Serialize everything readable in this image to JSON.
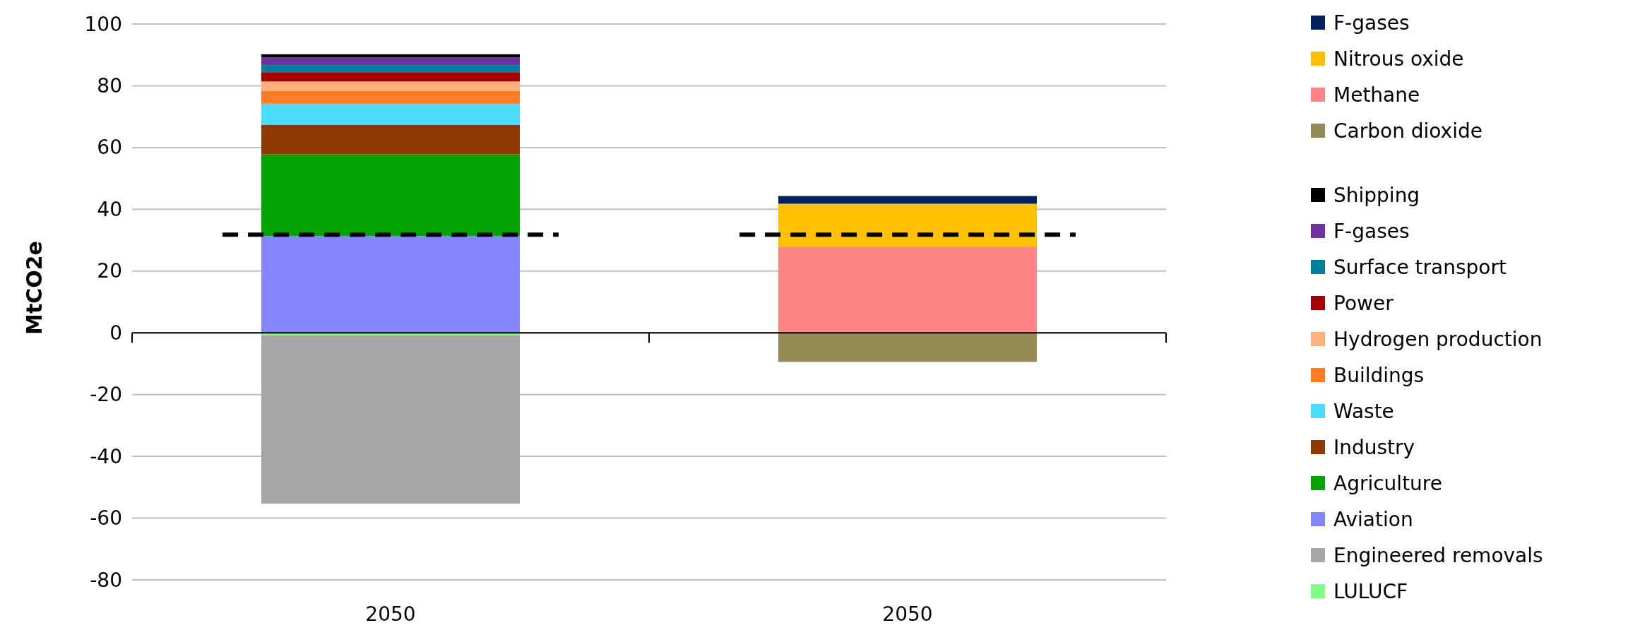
{
  "chart_data": {
    "type": "bar",
    "stacked": true,
    "ylabel": "MtCO2e",
    "categories": [
      "2050",
      "2050"
    ],
    "series": [
      {
        "name": "LULUCF",
        "color": "#7fff7f",
        "values": [
          -0.8,
          null
        ]
      },
      {
        "name": "Engineered removals",
        "color": "#a6a6a6",
        "values": [
          -54.5,
          null
        ]
      },
      {
        "name": "Aviation",
        "color": "#8585ff",
        "values": [
          31.3,
          null
        ]
      },
      {
        "name": "Agriculture",
        "color": "#03a303",
        "values": [
          26.5,
          null
        ]
      },
      {
        "name": "Industry",
        "color": "#8e3900",
        "values": [
          9.6,
          null
        ]
      },
      {
        "name": "Waste",
        "color": "#4cdcff",
        "values": [
          6.8,
          null
        ]
      },
      {
        "name": "Buildings",
        "color": "#ff7c24",
        "values": [
          4.2,
          null
        ]
      },
      {
        "name": "Hydrogen production",
        "color": "#ffb07c",
        "values": [
          3.0,
          null
        ]
      },
      {
        "name": "Power",
        "color": "#a50000",
        "values": [
          3.0,
          null
        ]
      },
      {
        "name": "Surface transport",
        "color": "#007f9b",
        "values": [
          2.3,
          null
        ]
      },
      {
        "name": "F-gases",
        "color": "#70309f",
        "values": [
          2.5,
          null
        ]
      },
      {
        "name": "Shipping",
        "color": "#000000",
        "values": [
          1.0,
          null
        ]
      },
      {
        "name": "Carbon dioxide",
        "color": "#948a54",
        "values": [
          null,
          -9.4
        ]
      },
      {
        "name": "Methane",
        "color": "#ff8585",
        "values": [
          null,
          27.9
        ]
      },
      {
        "name": "Nitrous oxide",
        "color": "#ffc000",
        "values": [
          null,
          13.9
        ]
      },
      {
        "name": "F-gases",
        "color": "#002060",
        "values": [
          null,
          2.5
        ]
      }
    ],
    "ref_lines": [
      {
        "axis": "y",
        "value": 31.8,
        "color": "#000000",
        "line_style": "dashed"
      }
    ],
    "ylim": [
      -80,
      100
    ],
    "yticks": [
      -80,
      -60,
      -40,
      -20,
      0,
      20,
      40,
      60,
      80,
      100
    ],
    "grid": "y",
    "legend": "right"
  }
}
